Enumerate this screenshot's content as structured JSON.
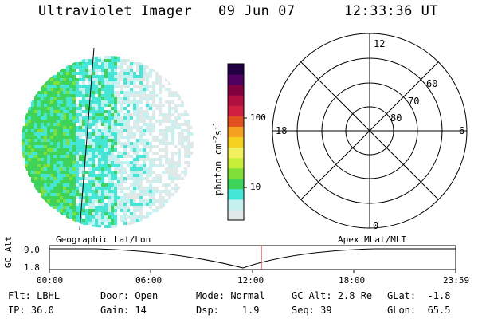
{
  "header": {
    "title": "Ultraviolet Imager",
    "date": "09 Jun 07",
    "time": "12:33:36 UT"
  },
  "image_panel": {
    "palette": [
      "#dfe9e8",
      "#c5f0f0",
      "#46e6d6",
      "#3ed35a",
      "#7fe03a",
      "#c8f03a",
      "#f3f060",
      "#f5d020",
      "#f5a020",
      "#e05020",
      "#d02040",
      "#b01040",
      "#800040",
      "#500060",
      "#200040"
    ]
  },
  "colorbar": {
    "label_main": "photon cm",
    "label_exp1": "-2",
    "label_mid": "s",
    "label_exp2": "-1",
    "tick_100": "100",
    "tick_10": "10"
  },
  "polar_plot": {
    "mlt_top": "12",
    "mlt_left": "18",
    "mlt_right": "6",
    "mlt_bottom": "0",
    "lat_60": "60",
    "lat_70": "70",
    "lat_80": "80"
  },
  "altitude_plot": {
    "ylabel": "GC Alt",
    "ytick_top": "9.0",
    "ytick_bottom": "1.8",
    "left_caption": "Geographic Lat/Lon",
    "right_caption": "Apex MLat/MLT",
    "xticks": [
      "00:00",
      "06:00",
      "12:00",
      "18:00",
      "23:59"
    ]
  },
  "info": {
    "filter": "Flt: LBHL",
    "ip": "IP: 36.0",
    "door": "Door: Open",
    "gain": "Gain: 14",
    "mode": "Mode: Normal",
    "dsp": "Dsp:    1.9",
    "gc_alt": "GC Alt: 2.8 Re",
    "seq": "Seq: 39",
    "glat": "GLat:  -1.8",
    "glon": "GLon:  65.5"
  }
}
